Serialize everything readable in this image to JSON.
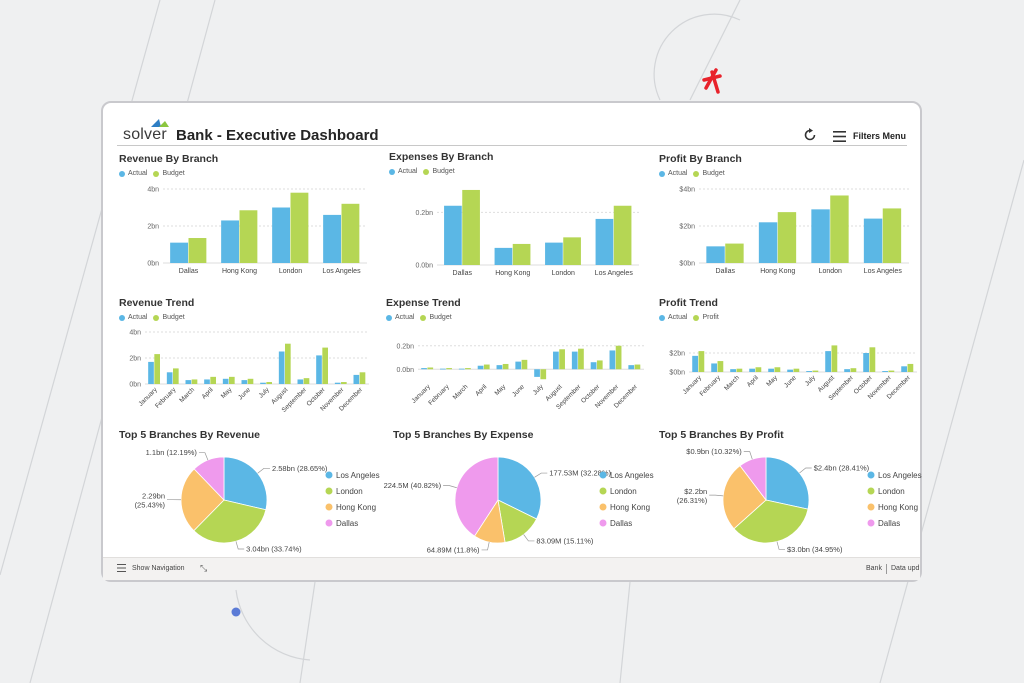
{
  "header": {
    "logo_text": "solver",
    "title": "Bank - Executive Dashboard",
    "filters_label": "Filters Menu"
  },
  "footer": {
    "nav_label": "Show Navigation",
    "page_label": "Bank",
    "status_text": "Data upd"
  },
  "colors": {
    "actual": "#5bb7e5",
    "budget": "#b5d654",
    "pie": [
      "#5bb7e5",
      "#b5d654",
      "#fac16b",
      "#ef9aed"
    ]
  },
  "chart_data": [
    {
      "type": "bar",
      "title": "Revenue By Branch",
      "legend": [
        "Actual",
        "Budget"
      ],
      "categories": [
        "Dallas",
        "Hong Kong",
        "London",
        "Los Angeles"
      ],
      "series": [
        {
          "name": "Actual",
          "values": [
            1.1,
            2.3,
            3.0,
            2.6
          ]
        },
        {
          "name": "Budget",
          "values": [
            1.35,
            2.85,
            3.8,
            3.2
          ]
        }
      ],
      "ylim": [
        0,
        4
      ],
      "ticks": [
        0,
        2,
        4
      ],
      "tick_labels": [
        "0bn",
        "2bn",
        "4bn"
      ]
    },
    {
      "type": "bar",
      "title": "Expenses By Branch",
      "legend": [
        "Actual",
        "Budget"
      ],
      "categories": [
        "Dallas",
        "Hong Kong",
        "London",
        "Los Angeles"
      ],
      "series": [
        {
          "name": "Actual",
          "values": [
            0.225,
            0.065,
            0.085,
            0.175
          ]
        },
        {
          "name": "Budget",
          "values": [
            0.285,
            0.08,
            0.105,
            0.225
          ]
        }
      ],
      "ylim": [
        0,
        0.3
      ],
      "ticks": [
        0,
        0.2
      ],
      "tick_labels": [
        "0.0bn",
        "0.2bn"
      ]
    },
    {
      "type": "bar",
      "title": "Profit By Branch",
      "legend": [
        "Actual",
        "Budget"
      ],
      "categories": [
        "Dallas",
        "Hong Kong",
        "London",
        "Los Angeles"
      ],
      "series": [
        {
          "name": "Actual",
          "values": [
            0.9,
            2.2,
            2.9,
            2.4
          ]
        },
        {
          "name": "Budget",
          "values": [
            1.05,
            2.75,
            3.65,
            2.95
          ]
        }
      ],
      "ylim": [
        0,
        4
      ],
      "ticks": [
        0,
        2,
        4
      ],
      "tick_labels": [
        "$0bn",
        "$2bn",
        "$4bn"
      ]
    },
    {
      "type": "bar",
      "title": "Revenue Trend",
      "legend": [
        "Actual",
        "Budget"
      ],
      "categories": [
        "January",
        "February",
        "March",
        "April",
        "May",
        "June",
        "July",
        "August",
        "September",
        "October",
        "November",
        "December"
      ],
      "series": [
        {
          "name": "Actual",
          "values": [
            1.7,
            0.9,
            0.3,
            0.35,
            0.4,
            0.3,
            0.1,
            2.5,
            0.35,
            2.2,
            0.1,
            0.7
          ]
        },
        {
          "name": "Budget",
          "values": [
            2.3,
            1.2,
            0.35,
            0.55,
            0.55,
            0.4,
            0.15,
            3.1,
            0.45,
            2.8,
            0.15,
            0.9
          ]
        }
      ],
      "ylim": [
        0,
        4
      ],
      "ticks": [
        0,
        2,
        4
      ],
      "tick_labels": [
        "0bn",
        "2bn",
        "4bn"
      ]
    },
    {
      "type": "bar",
      "title": "Expense Trend",
      "legend": [
        "Actual",
        "Budget"
      ],
      "categories": [
        "January",
        "February",
        "March",
        "April",
        "May",
        "June",
        "July",
        "August",
        "September",
        "October",
        "November",
        "December"
      ],
      "series": [
        {
          "name": "Actual",
          "values": [
            0.01,
            0.005,
            0.005,
            0.03,
            0.035,
            0.065,
            -0.065,
            0.15,
            0.15,
            0.06,
            0.16,
            0.035
          ]
        },
        {
          "name": "Budget",
          "values": [
            0.015,
            0.01,
            0.01,
            0.04,
            0.045,
            0.08,
            -0.085,
            0.17,
            0.175,
            0.075,
            0.2,
            0.04
          ]
        }
      ],
      "ylim": [
        -0.1,
        0.3
      ],
      "ticks": [
        0,
        0.2
      ],
      "tick_labels": [
        "0.0bn",
        "0.2bn"
      ]
    },
    {
      "type": "bar",
      "title": "Profit Trend",
      "legend": [
        "Actual",
        "Profit"
      ],
      "categories": [
        "January",
        "February",
        "March",
        "April",
        "May",
        "June",
        "July",
        "August",
        "September",
        "October",
        "November",
        "December"
      ],
      "series": [
        {
          "name": "Actual",
          "values": [
            1.7,
            0.9,
            0.3,
            0.35,
            0.35,
            0.25,
            0.1,
            2.2,
            0.3,
            2.0,
            0.1,
            0.6
          ]
        },
        {
          "name": "Profit",
          "values": [
            2.2,
            1.15,
            0.35,
            0.5,
            0.5,
            0.35,
            0.15,
            2.8,
            0.4,
            2.6,
            0.15,
            0.85
          ]
        }
      ],
      "ylim": [
        0,
        4
      ],
      "ticks": [
        0,
        2
      ],
      "tick_labels": [
        "$0bn",
        "$2bn"
      ]
    },
    {
      "type": "pie",
      "title": "Top 5 Branches By Revenue",
      "labels": [
        "Los Angeles",
        "London",
        "Hong Kong",
        "Dallas"
      ],
      "values": [
        28.65,
        33.74,
        25.43,
        12.19
      ],
      "data_labels": [
        "2.58bn (28.65%)",
        "3.04bn (33.74%)",
        "2.29bn (25.43%)",
        "1.1bn (12.19%)"
      ]
    },
    {
      "type": "pie",
      "title": "Top 5 Branches By Expense",
      "labels": [
        "Los Angeles",
        "London",
        "Hong Kong",
        "Dallas"
      ],
      "values": [
        32.28,
        15.11,
        11.8,
        40.82
      ],
      "data_labels": [
        "177.53M (32.28%)",
        "83.09M (15.11%)",
        "64.89M (11.8%)",
        "224.5M (40.82%)"
      ]
    },
    {
      "type": "pie",
      "title": "Top 5 Branches By Profit",
      "labels": [
        "Los Angeles",
        "London",
        "Hong Kong",
        "Dallas"
      ],
      "values": [
        28.41,
        34.95,
        26.31,
        10.32
      ],
      "data_labels": [
        "$2.4bn (28.41%)",
        "$3.0bn (34.95%)",
        "$2.2bn (26.31%)",
        "$0.9bn (10.32%)"
      ]
    }
  ]
}
